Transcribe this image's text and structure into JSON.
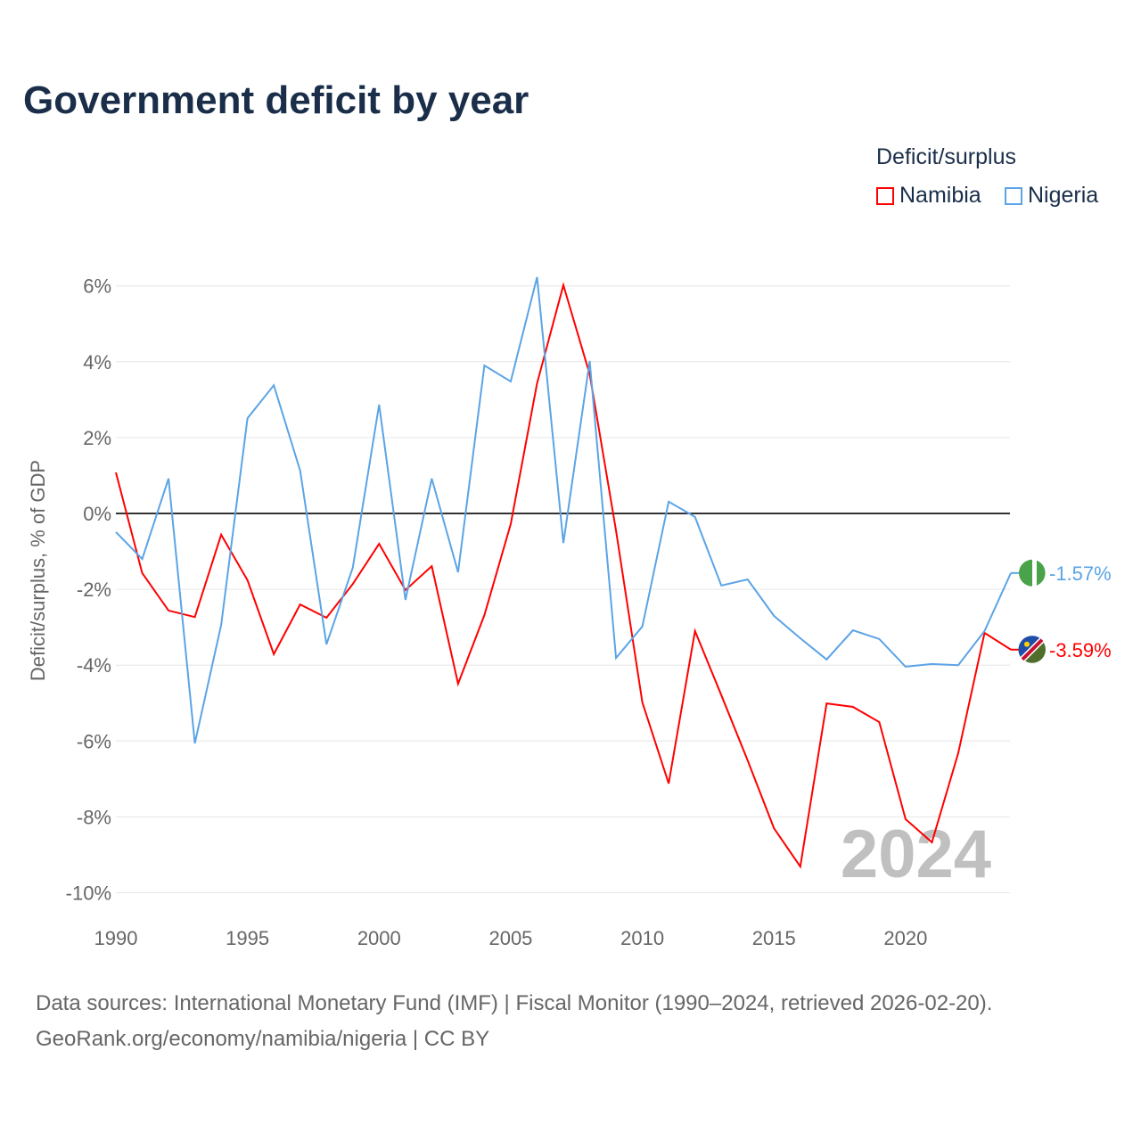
{
  "title": "Government deficit by year",
  "legend": {
    "title": "Deficit/surplus",
    "items": [
      {
        "name": "Namibia",
        "color": "#ff0000"
      },
      {
        "name": "Nigeria",
        "color": "#5ba4e6"
      }
    ]
  },
  "source": {
    "line1": "Data sources: International Monetary Fund (IMF) | Fiscal Monitor (1990–2024, retrieved 2026-02-20).",
    "line2": "GeoRank.org/economy/namibia/nigeria | CC BY"
  },
  "chart_data": {
    "type": "line",
    "ylabel": "Deficit/surplus, % of GDP",
    "ylim": [
      -10,
      6
    ],
    "yticks": [
      6,
      4,
      2,
      0,
      -2,
      -4,
      -6,
      -8,
      -10
    ],
    "ytick_labels": [
      "6%",
      "4%",
      "2%",
      "0%",
      "-2%",
      "-4%",
      "-6%",
      "-8%",
      "-10%"
    ],
    "xticks": [
      1990,
      1995,
      2000,
      2005,
      2010,
      2015,
      2020
    ],
    "xtick_labels": [
      "1990",
      "1995",
      "2000",
      "2005",
      "2010",
      "2015",
      "2020"
    ],
    "year_watermark": "2024",
    "x": [
      1990,
      1991,
      1992,
      1993,
      1994,
      1995,
      1996,
      1997,
      1998,
      1999,
      2000,
      2001,
      2002,
      2003,
      2004,
      2005,
      2006,
      2007,
      2008,
      2009,
      2010,
      2011,
      2012,
      2013,
      2014,
      2015,
      2016,
      2017,
      2018,
      2019,
      2020,
      2021,
      2022,
      2023,
      2024
    ],
    "series": [
      {
        "name": "Namibia",
        "color": "#ff0000",
        "end_label": "-3.59%",
        "values": [
          1.08,
          -1.57,
          -2.56,
          -2.73,
          -0.56,
          -1.76,
          -3.71,
          -2.4,
          -2.75,
          -1.86,
          -0.8,
          -2.02,
          -1.39,
          -4.49,
          -2.68,
          -0.28,
          3.43,
          6.02,
          3.67,
          -0.45,
          -4.98,
          -7.12,
          -3.1,
          -4.79,
          -6.51,
          -8.3,
          -9.31,
          -5.01,
          -5.1,
          -5.5,
          -8.06,
          -8.67,
          -6.32,
          -3.15,
          -3.59
        ]
      },
      {
        "name": "Nigeria",
        "color": "#5ba4e6",
        "end_label": "-1.57%",
        "values": [
          -0.49,
          -1.2,
          0.92,
          -6.06,
          -2.94,
          2.51,
          3.38,
          1.13,
          -3.45,
          -1.43,
          2.87,
          -2.28,
          0.92,
          -1.55,
          3.9,
          3.48,
          6.23,
          -0.78,
          4.02,
          -3.81,
          -2.98,
          0.31,
          -0.09,
          -1.9,
          -1.74,
          -2.7,
          -3.29,
          -3.85,
          -3.08,
          -3.31,
          -4.04,
          -3.97,
          -4.0,
          -3.1,
          -1.57
        ]
      }
    ]
  }
}
